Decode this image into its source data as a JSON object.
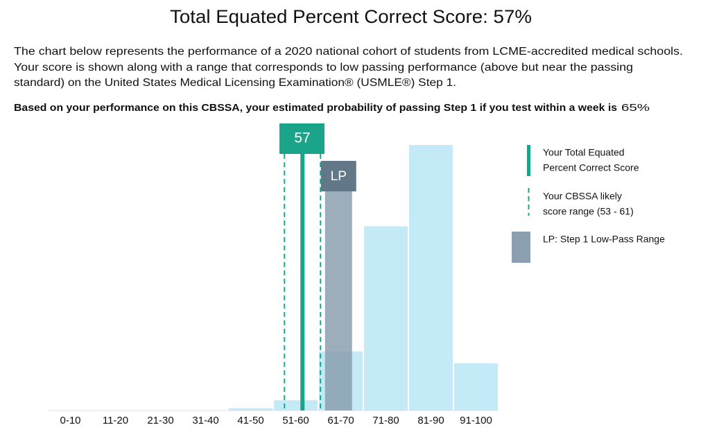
{
  "title": "Total Equated Percent Correct Score: 57%",
  "description": [
    "The chart below represents the performance of a 2020 national cohort of students from LCME-accredited medical schools.",
    "Your score is shown along with a range that corresponds to low passing performance (above but near the passing",
    "standard) on the United States Medical Licensing Examination® (USMLE®) Step 1."
  ],
  "probability_sentence": "Based on your performance on this CBSSA, your estimated probability of passing Step 1 if you test within a week is",
  "probability": "65%",
  "chart_data": {
    "type": "bar",
    "categories": [
      "0-10",
      "11-20",
      "21-30",
      "31-40",
      "41-50",
      "51-60",
      "61-70",
      "71-80",
      "81-90",
      "91-100"
    ],
    "values": [
      0,
      0,
      0,
      0,
      0.4,
      1.8,
      10.4,
      32.4,
      46.7,
      8.3
    ],
    "color": "#c4e9f7",
    "ylim": [
      0,
      50
    ],
    "score": 57,
    "score_color": "#1aa58a",
    "score_range": [
      53,
      61
    ],
    "lp_range": [
      62,
      68
    ],
    "lp_label": "LP",
    "lp_color": "#8b9fb0",
    "lp_label_color": "#627787",
    "legend": [
      {
        "lines": [
          "Your Total Equated",
          "Percent Correct Score"
        ]
      },
      {
        "lines": [
          "Your CBSSA likely",
          "score range (53 - 61)"
        ]
      },
      {
        "lines": [
          "LP: Step 1 Low-Pass Range"
        ]
      }
    ]
  }
}
